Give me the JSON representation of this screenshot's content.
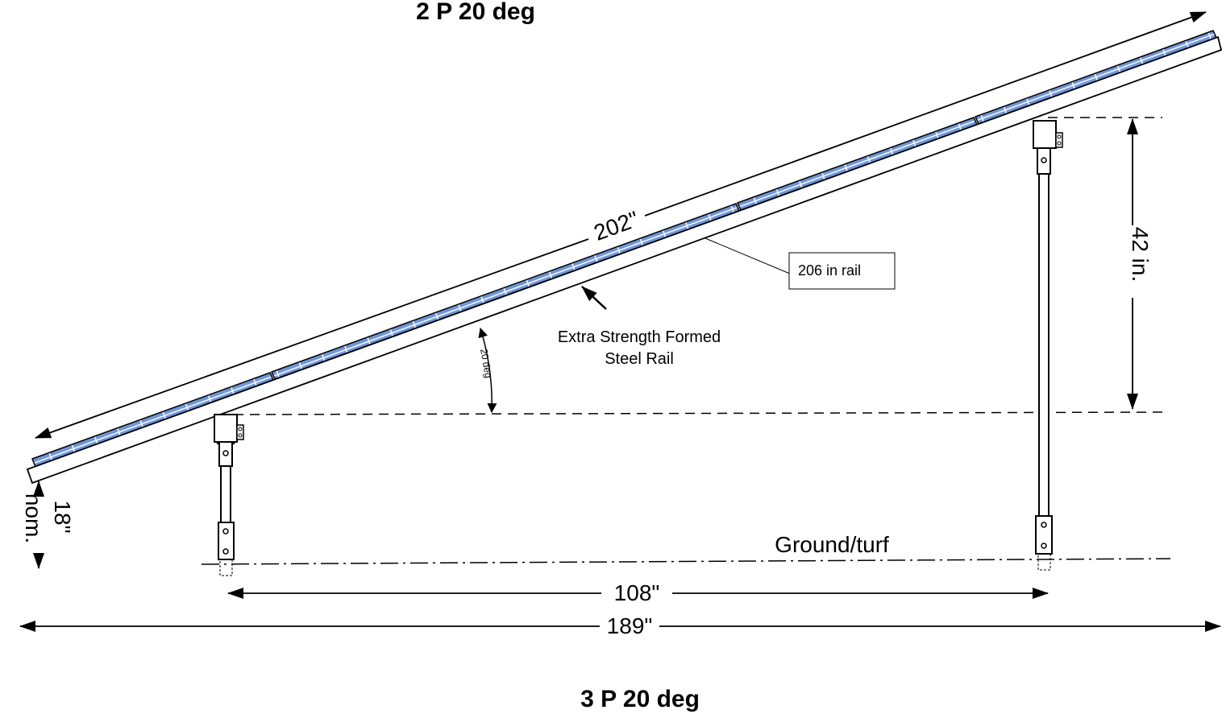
{
  "titles": {
    "top": "2 P 20 deg",
    "bottom": "3 P 20 deg"
  },
  "dimensions": {
    "panel_length": "202\"",
    "rail_length_label": "206 in rail",
    "tilt_angle": "20 deg",
    "rear_height": "42 in.",
    "front_clearance_value": "18\"",
    "front_clearance_suffix": "nom.",
    "post_spacing": "108\"",
    "overall_length": "189\""
  },
  "labels": {
    "rail_line1": "Extra Strength Formed",
    "rail_line2": "Steel Rail",
    "ground": "Ground/turf"
  },
  "colors": {
    "panel_fill": "#6f95d8",
    "panel_cell_lines": "#ffffff",
    "line": "#000000"
  }
}
